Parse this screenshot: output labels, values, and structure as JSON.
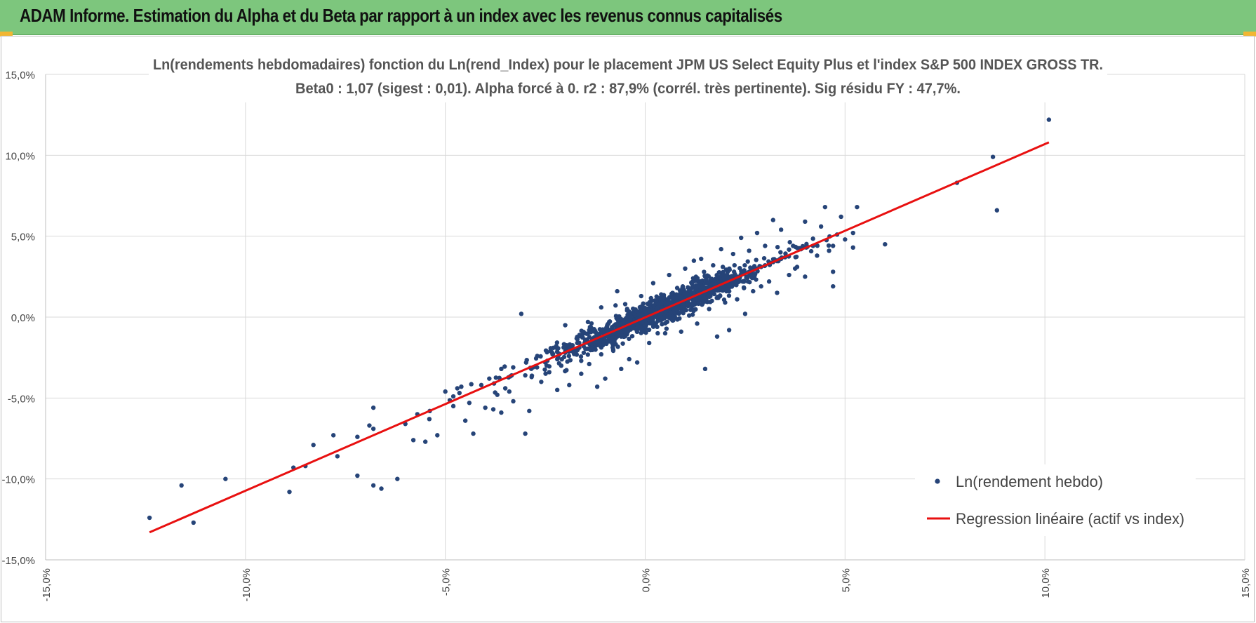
{
  "header": {
    "title": "ADAM Informe. Estimation du Alpha et du Beta par rapport à un index avec les revenus connus capitalisés"
  },
  "colors": {
    "header_bg": "#7dc67d",
    "accent_corner": "#f2b632",
    "points": "#264478",
    "regression": "#e81010",
    "grid": "#d9d9d9"
  },
  "chart_data": {
    "type": "scatter",
    "title_line1": "Ln(rendements hebdomadaires) fonction du Ln(rend_Index) pour le placement JPM US Select Equity Plus et l'index S&P 500 INDEX GROSS TR.",
    "title_line2": "Beta0 : 1,07 (sigest : 0,01). Alpha forcé à 0. r2 : 87,9% (corrél. très pertinente). Sig résidu FY : 47,7%.",
    "xlim": [
      -15,
      15
    ],
    "ylim": [
      -15,
      15
    ],
    "x_ticks": [
      -15,
      -10,
      -5,
      0,
      5,
      10,
      15
    ],
    "y_ticks": [
      -15,
      -10,
      -5,
      0,
      5,
      10,
      15
    ],
    "x_tick_labels": [
      "-15,0%",
      "-10,0%",
      "-5,0%",
      "0,0%",
      "5,0%",
      "10,0%",
      "15,0%"
    ],
    "y_tick_labels": [
      "-15,0%",
      "-10,0%",
      "-5,0%",
      "0,0%",
      "5,0%",
      "10,0%",
      "15,0%"
    ],
    "grid": true,
    "legend_position": "bottom-right",
    "series": [
      {
        "name": "Ln(rendement hebdo)",
        "kind": "scatter",
        "note": "dense cloud of ~1500 weekly returns, mostly within x ∈ [-2,3], following y ≈ 1.07x",
        "points": [
          [
            -12.4,
            -12.4
          ],
          [
            -11.6,
            -10.4
          ],
          [
            -11.3,
            -12.7
          ],
          [
            -10.5,
            -10.0
          ],
          [
            -8.9,
            -10.8
          ],
          [
            -8.8,
            -9.3
          ],
          [
            -8.5,
            -9.2
          ],
          [
            -8.3,
            -7.9
          ],
          [
            -7.8,
            -7.3
          ],
          [
            -7.7,
            -8.6
          ],
          [
            -7.2,
            -7.4
          ],
          [
            -7.2,
            -9.8
          ],
          [
            -6.9,
            -6.7
          ],
          [
            -6.8,
            -10.4
          ],
          [
            -6.8,
            -6.9
          ],
          [
            -6.8,
            -5.6
          ],
          [
            -6.6,
            -10.6
          ],
          [
            -6.2,
            -10.0
          ],
          [
            -6.0,
            -6.6
          ],
          [
            -5.8,
            -7.6
          ],
          [
            -5.7,
            -6.0
          ],
          [
            -5.5,
            -7.7
          ],
          [
            -5.4,
            -6.3
          ],
          [
            -5.2,
            -7.3
          ],
          [
            -5.0,
            -4.6
          ],
          [
            -4.8,
            -4.9
          ],
          [
            -4.8,
            -5.5
          ],
          [
            -4.7,
            -4.4
          ],
          [
            -4.6,
            -4.3
          ],
          [
            -4.5,
            -6.4
          ],
          [
            -4.4,
            -5.3
          ],
          [
            -4.3,
            -7.2
          ],
          [
            -4.1,
            -4.2
          ],
          [
            -4.0,
            -5.6
          ],
          [
            -3.9,
            -3.8
          ],
          [
            -3.8,
            -5.7
          ],
          [
            -3.7,
            -4.8
          ],
          [
            -3.6,
            -5.9
          ],
          [
            -3.6,
            -3.2
          ],
          [
            -3.5,
            -4.4
          ],
          [
            -3.4,
            -4.6
          ],
          [
            -3.3,
            -5.2
          ],
          [
            -3.1,
            0.2
          ],
          [
            -3.0,
            -7.2
          ],
          [
            -3.0,
            -3.6
          ],
          [
            -2.9,
            -5.8
          ],
          [
            -2.8,
            -3.1
          ],
          [
            -2.7,
            -2.4
          ],
          [
            -2.6,
            -4.0
          ],
          [
            -2.5,
            -2.8
          ],
          [
            -2.4,
            -3.4
          ],
          [
            -2.3,
            -1.9
          ],
          [
            -2.2,
            -4.5
          ],
          [
            -2.2,
            -2.6
          ],
          [
            -2.1,
            -3.0
          ],
          [
            -2.0,
            -2.2
          ],
          [
            -2.0,
            -0.5
          ],
          [
            -1.9,
            -4.2
          ],
          [
            -1.8,
            -2.0
          ],
          [
            -1.7,
            -1.6
          ],
          [
            -1.6,
            -2.7
          ],
          [
            -1.6,
            -3.5
          ],
          [
            -1.5,
            -1.4
          ],
          [
            -1.4,
            -2.9
          ],
          [
            -1.4,
            -0.8
          ],
          [
            -1.3,
            -1.8
          ],
          [
            -1.2,
            -4.3
          ],
          [
            -1.2,
            -1.1
          ],
          [
            -1.1,
            -2.3
          ],
          [
            -1.1,
            0.6
          ],
          [
            -1.0,
            -1.0
          ],
          [
            -1.0,
            -3.8
          ],
          [
            -0.9,
            -1.5
          ],
          [
            -0.9,
            -0.3
          ],
          [
            -0.8,
            -0.8
          ],
          [
            -0.8,
            -2.0
          ],
          [
            -0.7,
            1.6
          ],
          [
            -0.7,
            -0.6
          ],
          [
            -0.6,
            -1.2
          ],
          [
            -0.6,
            -3.2
          ],
          [
            -0.5,
            -0.4
          ],
          [
            -0.5,
            0.8
          ],
          [
            -0.4,
            -0.7
          ],
          [
            -0.4,
            -2.6
          ],
          [
            -0.3,
            -0.2
          ],
          [
            -0.3,
            0.3
          ],
          [
            -0.2,
            -0.5
          ],
          [
            -0.2,
            -2.8
          ],
          [
            -0.1,
            0.0
          ],
          [
            -0.1,
            1.3
          ],
          [
            0.0,
            0.1
          ],
          [
            0.0,
            -0.9
          ],
          [
            0.1,
            0.2
          ],
          [
            0.1,
            -1.6
          ],
          [
            0.2,
            0.3
          ],
          [
            0.2,
            2.1
          ],
          [
            0.3,
            0.4
          ],
          [
            0.3,
            -0.6
          ],
          [
            0.4,
            0.5
          ],
          [
            0.4,
            1.4
          ],
          [
            0.5,
            0.6
          ],
          [
            0.5,
            -1.0
          ],
          [
            0.6,
            0.7
          ],
          [
            0.6,
            2.6
          ],
          [
            0.7,
            0.8
          ],
          [
            0.7,
            -0.2
          ],
          [
            0.8,
            0.9
          ],
          [
            0.8,
            1.8
          ],
          [
            0.9,
            1.0
          ],
          [
            0.9,
            -0.9
          ],
          [
            1.0,
            1.1
          ],
          [
            1.0,
            3.0
          ],
          [
            1.1,
            1.2
          ],
          [
            1.1,
            0.1
          ],
          [
            1.2,
            1.3
          ],
          [
            1.2,
            2.4
          ],
          [
            1.3,
            1.4
          ],
          [
            1.3,
            -0.4
          ],
          [
            1.4,
            1.5
          ],
          [
            1.4,
            3.6
          ],
          [
            1.5,
            1.6
          ],
          [
            1.5,
            -3.2
          ],
          [
            1.6,
            1.7
          ],
          [
            1.6,
            0.5
          ],
          [
            1.7,
            1.8
          ],
          [
            1.7,
            3.2
          ],
          [
            1.8,
            1.9
          ],
          [
            1.8,
            -1.2
          ],
          [
            1.9,
            2.0
          ],
          [
            1.9,
            4.2
          ],
          [
            2.0,
            2.1
          ],
          [
            2.0,
            0.9
          ],
          [
            2.1,
            2.3
          ],
          [
            2.1,
            -0.8
          ],
          [
            2.2,
            2.4
          ],
          [
            2.2,
            3.9
          ],
          [
            2.3,
            2.5
          ],
          [
            2.3,
            1.1
          ],
          [
            2.4,
            2.6
          ],
          [
            2.4,
            4.9
          ],
          [
            2.5,
            2.7
          ],
          [
            2.5,
            0.2
          ],
          [
            2.6,
            2.8
          ],
          [
            2.6,
            4.1
          ],
          [
            2.7,
            2.9
          ],
          [
            2.7,
            1.6
          ],
          [
            2.8,
            3.0
          ],
          [
            2.8,
            5.2
          ],
          [
            2.9,
            3.1
          ],
          [
            2.9,
            1.9
          ],
          [
            3.0,
            3.2
          ],
          [
            3.0,
            4.4
          ],
          [
            3.1,
            3.3
          ],
          [
            3.1,
            2.2
          ],
          [
            3.2,
            3.4
          ],
          [
            3.2,
            6.0
          ],
          [
            3.3,
            3.5
          ],
          [
            3.3,
            1.5
          ],
          [
            3.4,
            3.6
          ],
          [
            3.4,
            5.4
          ],
          [
            3.5,
            3.7
          ],
          [
            3.6,
            2.6
          ],
          [
            3.7,
            4.4
          ],
          [
            3.8,
            3.1
          ],
          [
            3.9,
            4.2
          ],
          [
            4.0,
            5.9
          ],
          [
            4.0,
            2.5
          ],
          [
            4.2,
            4.4
          ],
          [
            4.3,
            3.8
          ],
          [
            4.4,
            5.6
          ],
          [
            4.5,
            6.8
          ],
          [
            4.6,
            4.1
          ],
          [
            4.7,
            2.8
          ],
          [
            4.7,
            1.9
          ],
          [
            4.8,
            5.1
          ],
          [
            4.9,
            6.2
          ],
          [
            5.0,
            4.8
          ],
          [
            5.2,
            5.2
          ],
          [
            5.2,
            4.3
          ],
          [
            5.3,
            6.8
          ],
          [
            6.0,
            4.5
          ],
          [
            7.8,
            8.3
          ],
          [
            8.7,
            9.9
          ],
          [
            8.8,
            6.6
          ],
          [
            10.1,
            12.2
          ]
        ]
      },
      {
        "name": "Regression linéaire (actif vs index)",
        "kind": "line",
        "x": [
          -12.4,
          10.1
        ],
        "y": [
          -13.3,
          10.8
        ]
      }
    ]
  }
}
